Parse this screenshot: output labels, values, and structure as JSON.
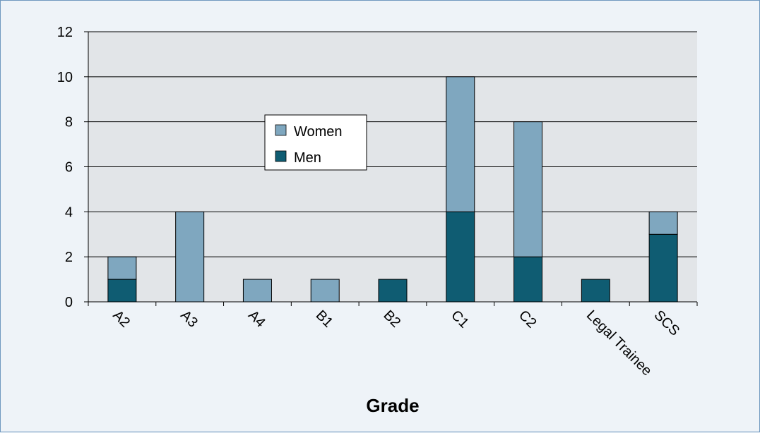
{
  "chart_data": {
    "type": "bar",
    "stacked": true,
    "categories": [
      "A2",
      "A3",
      "A4",
      "B1",
      "B2",
      "C1",
      "C2",
      "Legal Trainee",
      "SCS"
    ],
    "series": [
      {
        "name": "Men",
        "values": [
          1,
          0,
          0,
          0,
          1,
          4,
          2,
          1,
          3
        ],
        "color": "#0f5c72"
      },
      {
        "name": "Women",
        "values": [
          1,
          4,
          1,
          1,
          0,
          6,
          6,
          0,
          1
        ],
        "color": "#7fa7bf"
      }
    ],
    "yticks": [
      "0",
      "2",
      "4",
      "6",
      "8",
      "10",
      "12"
    ],
    "ylim": [
      0,
      12
    ],
    "xlabel": "Grade",
    "ylabel": "",
    "title": "",
    "grid": true,
    "legend": {
      "position": "center-left",
      "entries": [
        "Women",
        "Men"
      ]
    },
    "colors": {
      "plot_background": "#e2e5e8",
      "page_background": "#eef3f8",
      "border": "#6f98bf"
    }
  }
}
